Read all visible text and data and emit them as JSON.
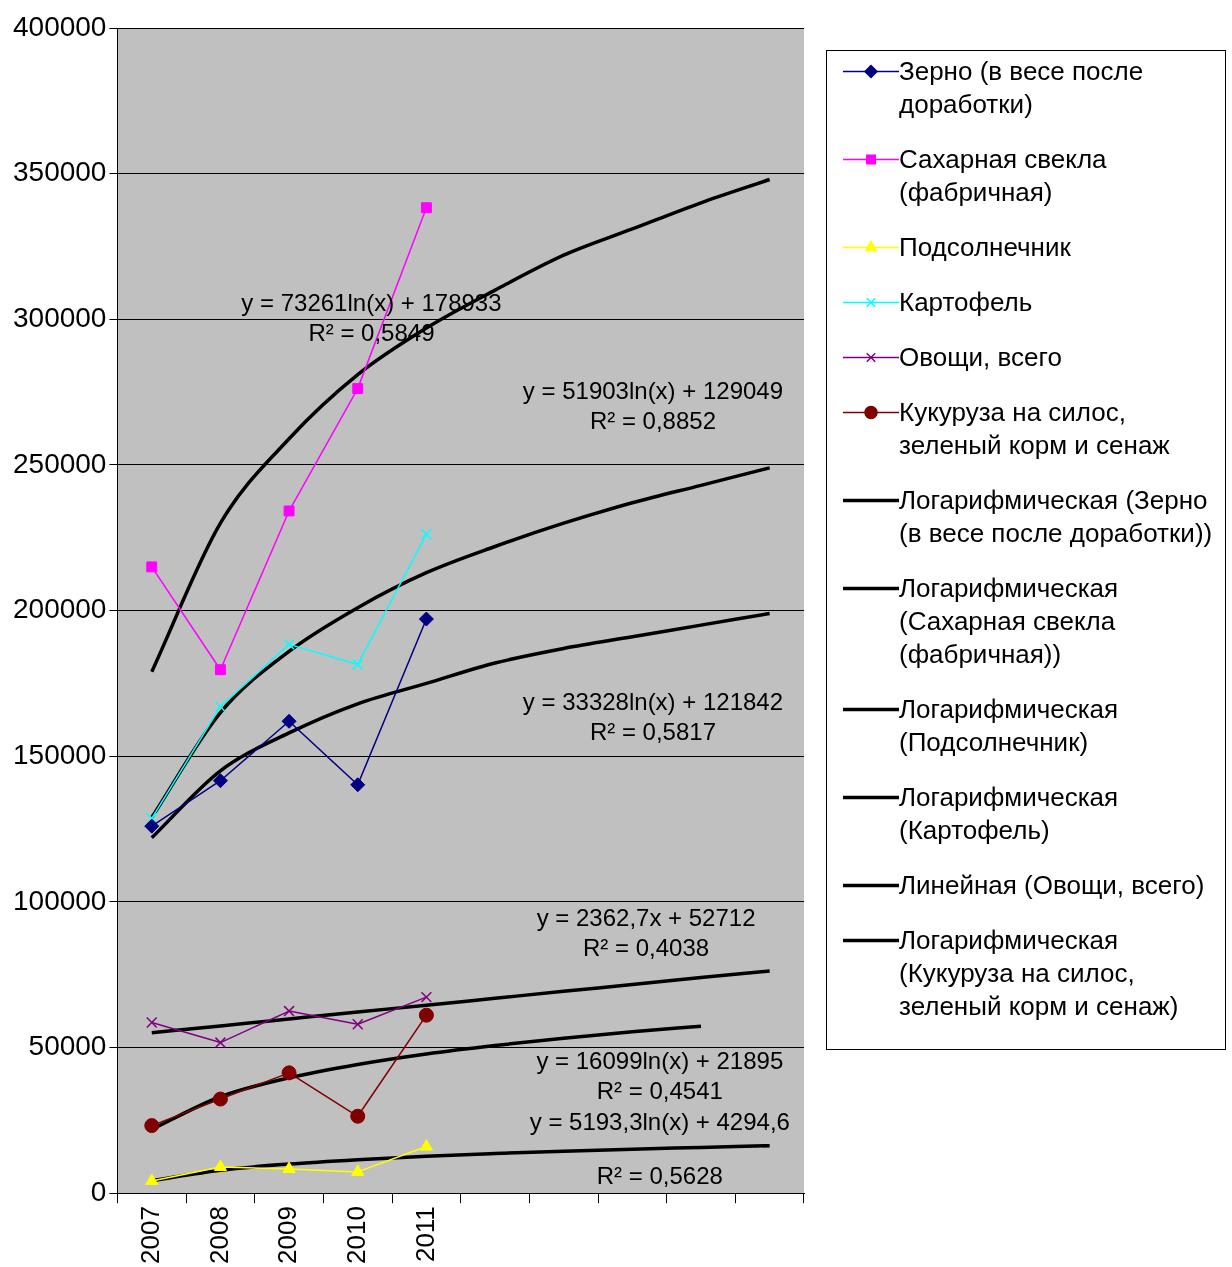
{
  "chart_data": {
    "type": "line",
    "categories": [
      "2007",
      "2008",
      "2009",
      "2010",
      "2011",
      null,
      null,
      null,
      null,
      null
    ],
    "series": [
      {
        "name": "Зерно (в весе после доработки)",
        "color": "#000080",
        "marker": "diamond",
        "values": [
          126000,
          141600,
          162000,
          140200,
          197100,
          null,
          null,
          null,
          null,
          null
        ]
      },
      {
        "name": "Сахарная свекла (фабричная)",
        "color": "#ff00ff",
        "marker": "square",
        "values": [
          215000,
          179700,
          234200,
          276200,
          338300,
          null,
          null,
          null,
          null,
          null
        ]
      },
      {
        "name": "Подсолнечник",
        "color": "#ffff00",
        "marker": "triangle",
        "values": [
          4200,
          9000,
          8300,
          7300,
          16000,
          null,
          null,
          null,
          null,
          null
        ]
      },
      {
        "name": "Картофель",
        "color": "#00ffff",
        "marker": "cross",
        "values": [
          128700,
          167000,
          188400,
          181500,
          226200,
          null,
          null,
          null,
          null,
          null
        ]
      },
      {
        "name": "Овощи, всего",
        "color": "#800080",
        "marker": "cross",
        "values": [
          58600,
          51700,
          62500,
          58000,
          67300,
          null,
          null,
          null,
          null,
          null
        ]
      },
      {
        "name": "Кукуруза на силос, зеленый корм и сенаж",
        "color": "#800000",
        "marker": "circle",
        "values": [
          23200,
          32300,
          41300,
          26400,
          61100,
          null,
          null,
          null,
          null,
          null
        ]
      },
      {
        "name": "Логарифмическая (Зерно (в весе после доработки))",
        "color": "#000000",
        "marker": "none",
        "values": [
          122000,
          145000,
          158000,
          168000,
          175000,
          182000,
          187000,
          191000,
          195000,
          199000
        ]
      },
      {
        "name": "Логарифмическая (Сахарная свекла (фабричная))",
        "color": "#000000",
        "marker": "none",
        "values": [
          179000,
          230000,
          259000,
          281000,
          297000,
          310000,
          322000,
          331000,
          340000,
          348000
        ]
      },
      {
        "name": "Логарифмическая (Подсолнечник)",
        "color": "#000000",
        "marker": "none",
        "values": [
          4300,
          7900,
          10000,
          11500,
          12700,
          13600,
          14400,
          15100,
          15700,
          16300
        ]
      },
      {
        "name": "Логарифмическая (Картофель)",
        "color": "#000000",
        "marker": "none",
        "values": [
          129000,
          165000,
          186000,
          201000,
          213000,
          222000,
          230000,
          237000,
          243000,
          249000
        ]
      },
      {
        "name": "Линейная (Овощи, всего)",
        "color": "#000000",
        "marker": "none",
        "values": [
          55100,
          57400,
          59800,
          62200,
          64500,
          66900,
          69300,
          71600,
          74000,
          76300
        ]
      },
      {
        "name": "Логарифмическая (Кукуруза на силос, зеленый корм и сенаж)",
        "color": "#000000",
        "marker": "none",
        "values": [
          21900,
          33100,
          39600,
          44200,
          47800,
          50700,
          53200,
          55400,
          57300,
          null
        ]
      }
    ],
    "ylim": [
      0,
      400000
    ],
    "yticks": [
      0,
      50000,
      100000,
      150000,
      200000,
      250000,
      300000,
      350000,
      400000
    ],
    "grid": "y",
    "legend": "right",
    "annotations": [
      "y = 73261ln(x) + 178933\nR² = 0,5849",
      "y = 51903ln(x) + 129049\nR² = 0,8852",
      "y = 33328ln(x) + 121842\nR² = 0,5817",
      "y = 2362,7x + 52712\nR² = 0,4038",
      "y = 16099ln(x) + 21895\nR² = 0,4541",
      "y = 5193,3ln(x) + 4294,6\nR² = 0,5628"
    ]
  }
}
